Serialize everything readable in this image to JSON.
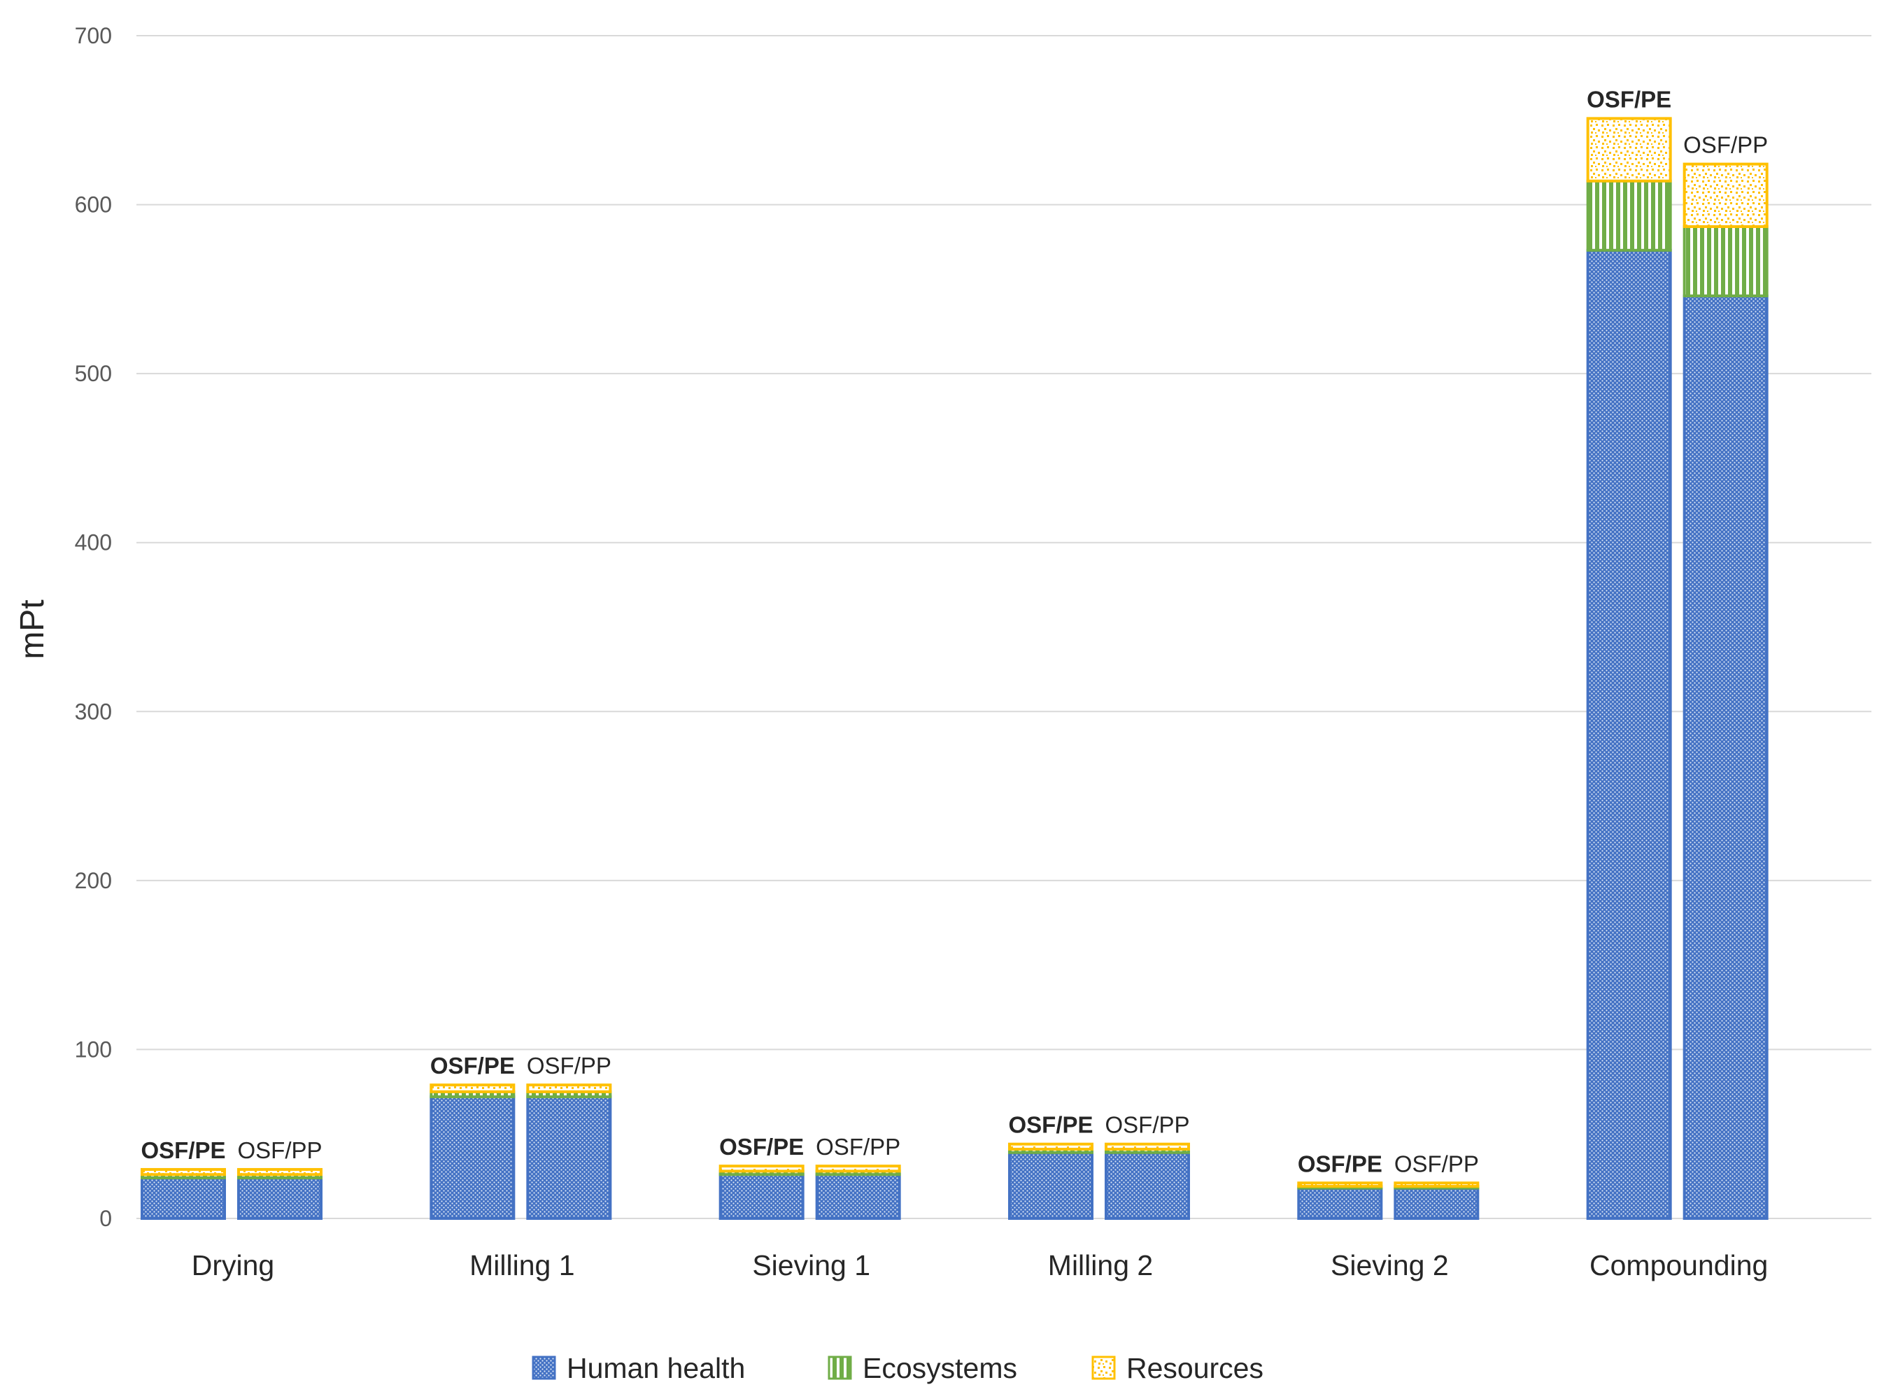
{
  "chart_data": {
    "type": "bar",
    "stacked": true,
    "title": "",
    "xlabel": "",
    "ylabel": "mPt",
    "ylim": [
      0,
      700
    ],
    "yticks": [
      0,
      100,
      200,
      300,
      400,
      500,
      600,
      700
    ],
    "grid": true,
    "legend_position": "bottom",
    "categories": [
      "Drying",
      "Milling 1",
      "Sieving 1",
      "Milling 2",
      "Sieving 2",
      "Compounding"
    ],
    "bar_labels": [
      "OSF/PE",
      "OSF/PP"
    ],
    "series": [
      {
        "name": "Human health",
        "color": "#4472C4",
        "pattern": "dots",
        "values": {
          "OSF/PE": [
            24,
            72,
            26,
            39,
            18,
            573
          ],
          "OSF/PP": [
            24,
            72,
            26,
            39,
            18,
            546
          ]
        }
      },
      {
        "name": "Ecosystems",
        "color": "#70AD47",
        "pattern": "vertical-lines",
        "values": {
          "OSF/PE": [
            2,
            3,
            2,
            2,
            1,
            41
          ],
          "OSF/PP": [
            2,
            3,
            2,
            2,
            1,
            41
          ]
        }
      },
      {
        "name": "Resources",
        "color": "#FFC000",
        "pattern": "confetti",
        "values": {
          "OSF/PE": [
            3,
            4,
            3,
            3,
            2,
            37
          ],
          "OSF/PP": [
            3,
            4,
            3,
            3,
            2,
            37
          ]
        }
      }
    ]
  }
}
